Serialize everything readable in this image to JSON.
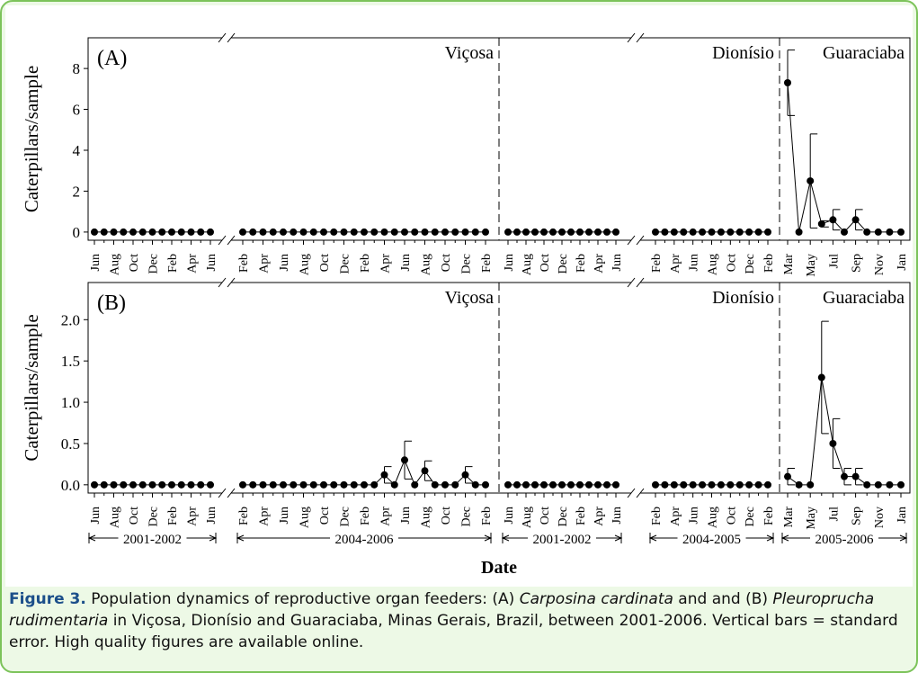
{
  "chart_data": [
    {
      "type": "line",
      "label": "(A)",
      "ylabel": "Caterpillars/sample",
      "ylim": [
        -0.4,
        9.5
      ],
      "yticks": [
        0,
        2,
        4,
        6,
        8
      ],
      "segments": [
        {
          "categories": [
            "Jun",
            null,
            "Aug",
            null,
            "Oct",
            null,
            "Dec",
            null,
            "Feb",
            null,
            "Apr",
            null,
            "Jun"
          ],
          "values": [
            0,
            0,
            0,
            0,
            0,
            0,
            0,
            0,
            0,
            0,
            0,
            0,
            0
          ]
        },
        {
          "site": "Viçosa",
          "categories": [
            "Feb",
            null,
            "Apr",
            null,
            "Jun",
            null,
            "Aug",
            null,
            "Oct",
            null,
            "Dec",
            null,
            "Feb",
            null,
            "Apr",
            null,
            "Jun",
            null,
            "Aug",
            null,
            "Oct",
            null,
            "Dec",
            null,
            "Feb"
          ],
          "values": [
            0,
            0,
            0,
            0,
            0,
            0,
            0,
            0,
            0,
            0,
            0,
            0,
            0,
            0,
            0,
            0,
            0,
            0,
            0,
            0,
            0,
            0,
            0,
            0,
            0
          ]
        },
        {
          "categories": [
            "Jun",
            null,
            "Aug",
            null,
            "Oct",
            null,
            "Dec",
            null,
            "Feb",
            null,
            "Apr",
            null,
            "Jun"
          ],
          "values": [
            0,
            0,
            0,
            0,
            0,
            0,
            0,
            0,
            0,
            0,
            0,
            0,
            0
          ]
        },
        {
          "site": "Dionísio",
          "categories": [
            "Feb",
            null,
            "Apr",
            null,
            "Jun",
            null,
            "Aug",
            null,
            "Oct",
            null,
            "Dec",
            null,
            "Feb"
          ],
          "values": [
            0,
            0,
            0,
            0,
            0,
            0,
            0,
            0,
            0,
            0,
            0,
            0,
            0
          ]
        },
        {
          "site": "Guaraciaba",
          "categories": [
            "Mar",
            null,
            "May",
            null,
            "Jul",
            null,
            "Sep",
            null,
            "Nov",
            null,
            "Jan"
          ],
          "values": [
            7.3,
            0,
            2.5,
            0.4,
            0.6,
            0,
            0.6,
            0,
            0,
            0,
            0
          ],
          "errors": [
            1.6,
            null,
            2.3,
            0.15,
            0.5,
            null,
            0.5,
            null,
            null,
            null,
            null
          ]
        }
      ]
    },
    {
      "type": "line",
      "label": "(B)",
      "ylabel": "Caterpillars/sample",
      "xlabel": "Date",
      "ylim": [
        -0.1,
        2.45
      ],
      "yticks": [
        {
          "value": 0,
          "label": "0.0"
        },
        0.5,
        {
          "value": 1,
          "label": "1.0"
        },
        1.5,
        {
          "value": 2,
          "label": "2.0"
        }
      ],
      "segments": [
        {
          "period": "2001-2002",
          "categories": [
            "Jun",
            null,
            "Aug",
            null,
            "Oct",
            null,
            "Dec",
            null,
            "Feb",
            null,
            "Apr",
            null,
            "Jun"
          ],
          "values": [
            0,
            0,
            0,
            0,
            0,
            0,
            0,
            0,
            0,
            0,
            0,
            0,
            0
          ]
        },
        {
          "site": "Viçosa",
          "period": "2004-2006",
          "categories": [
            "Feb",
            null,
            "Apr",
            null,
            "Jun",
            null,
            "Aug",
            null,
            "Oct",
            null,
            "Dec",
            null,
            "Feb",
            null,
            "Apr",
            null,
            "Jun",
            null,
            "Aug",
            null,
            "Oct",
            null,
            "Dec",
            null,
            "Feb"
          ],
          "values": [
            0,
            0,
            0,
            0,
            0,
            0,
            0,
            0,
            0,
            0,
            0,
            0,
            0,
            0,
            0.12,
            0,
            0.3,
            0,
            0.17,
            0,
            0,
            0,
            0.12,
            0,
            0
          ],
          "errors": [
            null,
            null,
            null,
            null,
            null,
            null,
            null,
            null,
            null,
            null,
            null,
            null,
            null,
            null,
            0.1,
            null,
            0.23,
            null,
            0.12,
            null,
            null,
            null,
            0.1,
            null,
            null
          ]
        },
        {
          "period": "2001-2002",
          "categories": [
            "Jun",
            null,
            "Aug",
            null,
            "Oct",
            null,
            "Dec",
            null,
            "Feb",
            null,
            "Apr",
            null,
            "Jun"
          ],
          "values": [
            0,
            0,
            0,
            0,
            0,
            0,
            0,
            0,
            0,
            0,
            0,
            0,
            0
          ]
        },
        {
          "site": "Dionísio",
          "period": "2004-2005",
          "categories": [
            "Feb",
            null,
            "Apr",
            null,
            "Jun",
            null,
            "Aug",
            null,
            "Oct",
            null,
            "Dec",
            null,
            "Feb"
          ],
          "values": [
            0,
            0,
            0,
            0,
            0,
            0,
            0,
            0,
            0,
            0,
            0,
            0,
            0
          ]
        },
        {
          "site": "Guaraciaba",
          "period": "2005-2006",
          "categories": [
            "Mar",
            null,
            "May",
            null,
            "Jul",
            null,
            "Sep",
            null,
            "Nov",
            null,
            "Jan"
          ],
          "values": [
            0.1,
            0,
            0,
            1.3,
            0.5,
            0.1,
            0.1,
            0,
            0,
            0,
            0
          ],
          "errors": [
            0.1,
            null,
            null,
            0.68,
            0.3,
            0.1,
            0.1,
            null,
            null,
            null,
            null
          ]
        }
      ]
    }
  ],
  "caption": {
    "label": "Figure 3.",
    "text1": " Population dynamics of reproductive organ feeders: (A) ",
    "species1": "Carposina cardinata",
    "text2": " and and (B) ",
    "species2": "Pleuroprucha rudimentaria",
    "text3": " in Viçosa, Dionísio and Guaraciaba, Minas Gerais, Brazil, between 2001-2006. Vertical bars = standard error. High quality figures are available online."
  }
}
